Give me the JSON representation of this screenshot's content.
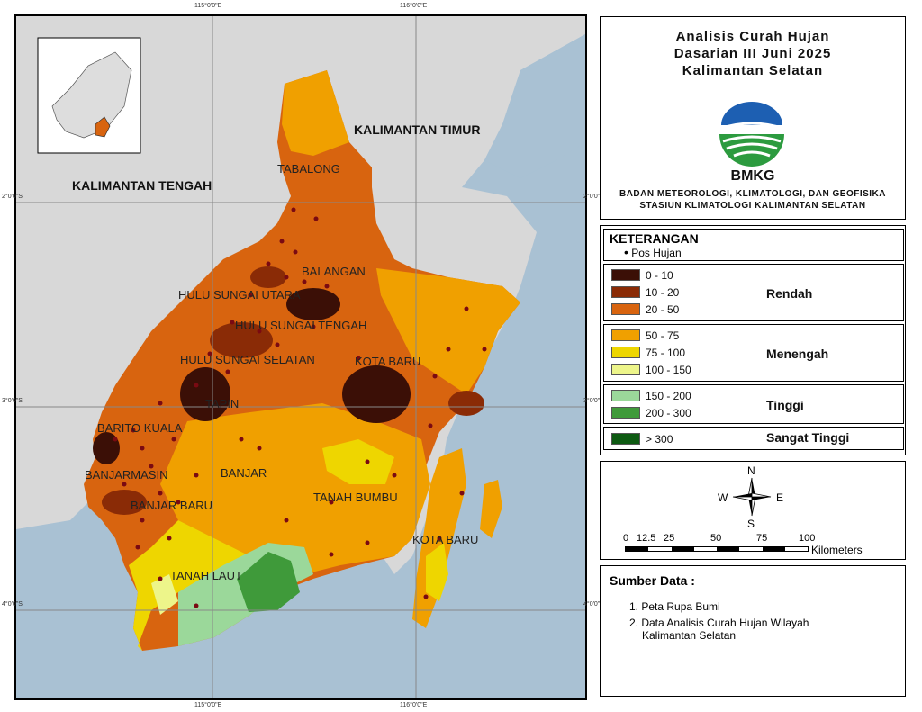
{
  "title": {
    "line1": "Analisis Curah Hujan",
    "line2": "Dasarian III Juni 2025",
    "line3": "Kalimantan Selatan"
  },
  "logo": {
    "text": "BMKG",
    "icon": "bmkg-logo"
  },
  "organization": {
    "line1": "BADAN METEOROLOGI, KLIMATOLOGI, DAN GEOFISIKA",
    "line2": "STASIUN KLIMATOLOGI KALIMANTAN SELATAN"
  },
  "legend": {
    "title": "KETERANGAN",
    "point_label": "Pos Hujan",
    "classes": [
      {
        "range": "0 - 10",
        "color": "#3b0f06"
      },
      {
        "range": "10 - 20",
        "color": "#8a2b06"
      },
      {
        "range": "20 - 50",
        "color": "#d8640f"
      },
      {
        "range": "50 - 75",
        "color": "#f0a000"
      },
      {
        "range": "75 - 100",
        "color": "#eed600"
      },
      {
        "range": "100 - 150",
        "color": "#edf58a"
      },
      {
        "range": "150 - 200",
        "color": "#9bd89a"
      },
      {
        "range": "200 - 300",
        "color": "#3f9a3a"
      },
      {
        "range": "> 300",
        "color": "#0d5a12"
      }
    ],
    "categories": {
      "rendah": "Rendah",
      "menengah": "Menengah",
      "tinggi": "Tinggi",
      "sangat_tinggi": "Sangat Tinggi"
    }
  },
  "compass": {
    "n": "N",
    "s": "S",
    "e": "E",
    "w": "W"
  },
  "scale": {
    "ticks": [
      "0",
      "12.5",
      "25",
      "50",
      "75",
      "100"
    ],
    "unit": "Kilometers"
  },
  "sources": {
    "title": "Sumber Data :",
    "item1": "1. Peta Rupa Bumi",
    "item2a": "2. Data Analisis Curah Hujan Wilayah",
    "item2b": "Kalimantan Selatan"
  },
  "grid_labels": {
    "top_left": "115°0'0\"E",
    "top_right": "116°0'0\"E",
    "bottom_left": "115°0'0\"E",
    "bottom_right": "116°0'0\"E",
    "left_upper": "2°0'0\"S",
    "left_middle": "3°0'0\"S",
    "left_lower": "4°0'0\"S",
    "right_upper": "2°0'0\"S",
    "right_middle": "3°0'0\"S",
    "right_lower": "4°0'0\"S"
  },
  "map_labels": {
    "kalteng": "KALIMANTAN TENGAH",
    "kaltim": "KALIMANTAN TIMUR",
    "tabalong": "TABALONG",
    "balangan": "BALANGAN",
    "hsu": "HULU SUNGAI UTARA",
    "hst": "HULU SUNGAI TENGAH",
    "hss": "HULU SUNGAI SELATAN",
    "kotabaru1": "KOTA BARU",
    "tapin": "TAPIN",
    "baritokuala": "BARITO KUALA",
    "banjarmasin": "BANJARMASIN",
    "banjar": "BANJAR",
    "banjarbaru": "BANJAR BARU",
    "tanahbumbu": "TANAH BUMBU",
    "kotabaru2": "KOTA BARU",
    "tanahlaut": "TANAH LAUT"
  }
}
